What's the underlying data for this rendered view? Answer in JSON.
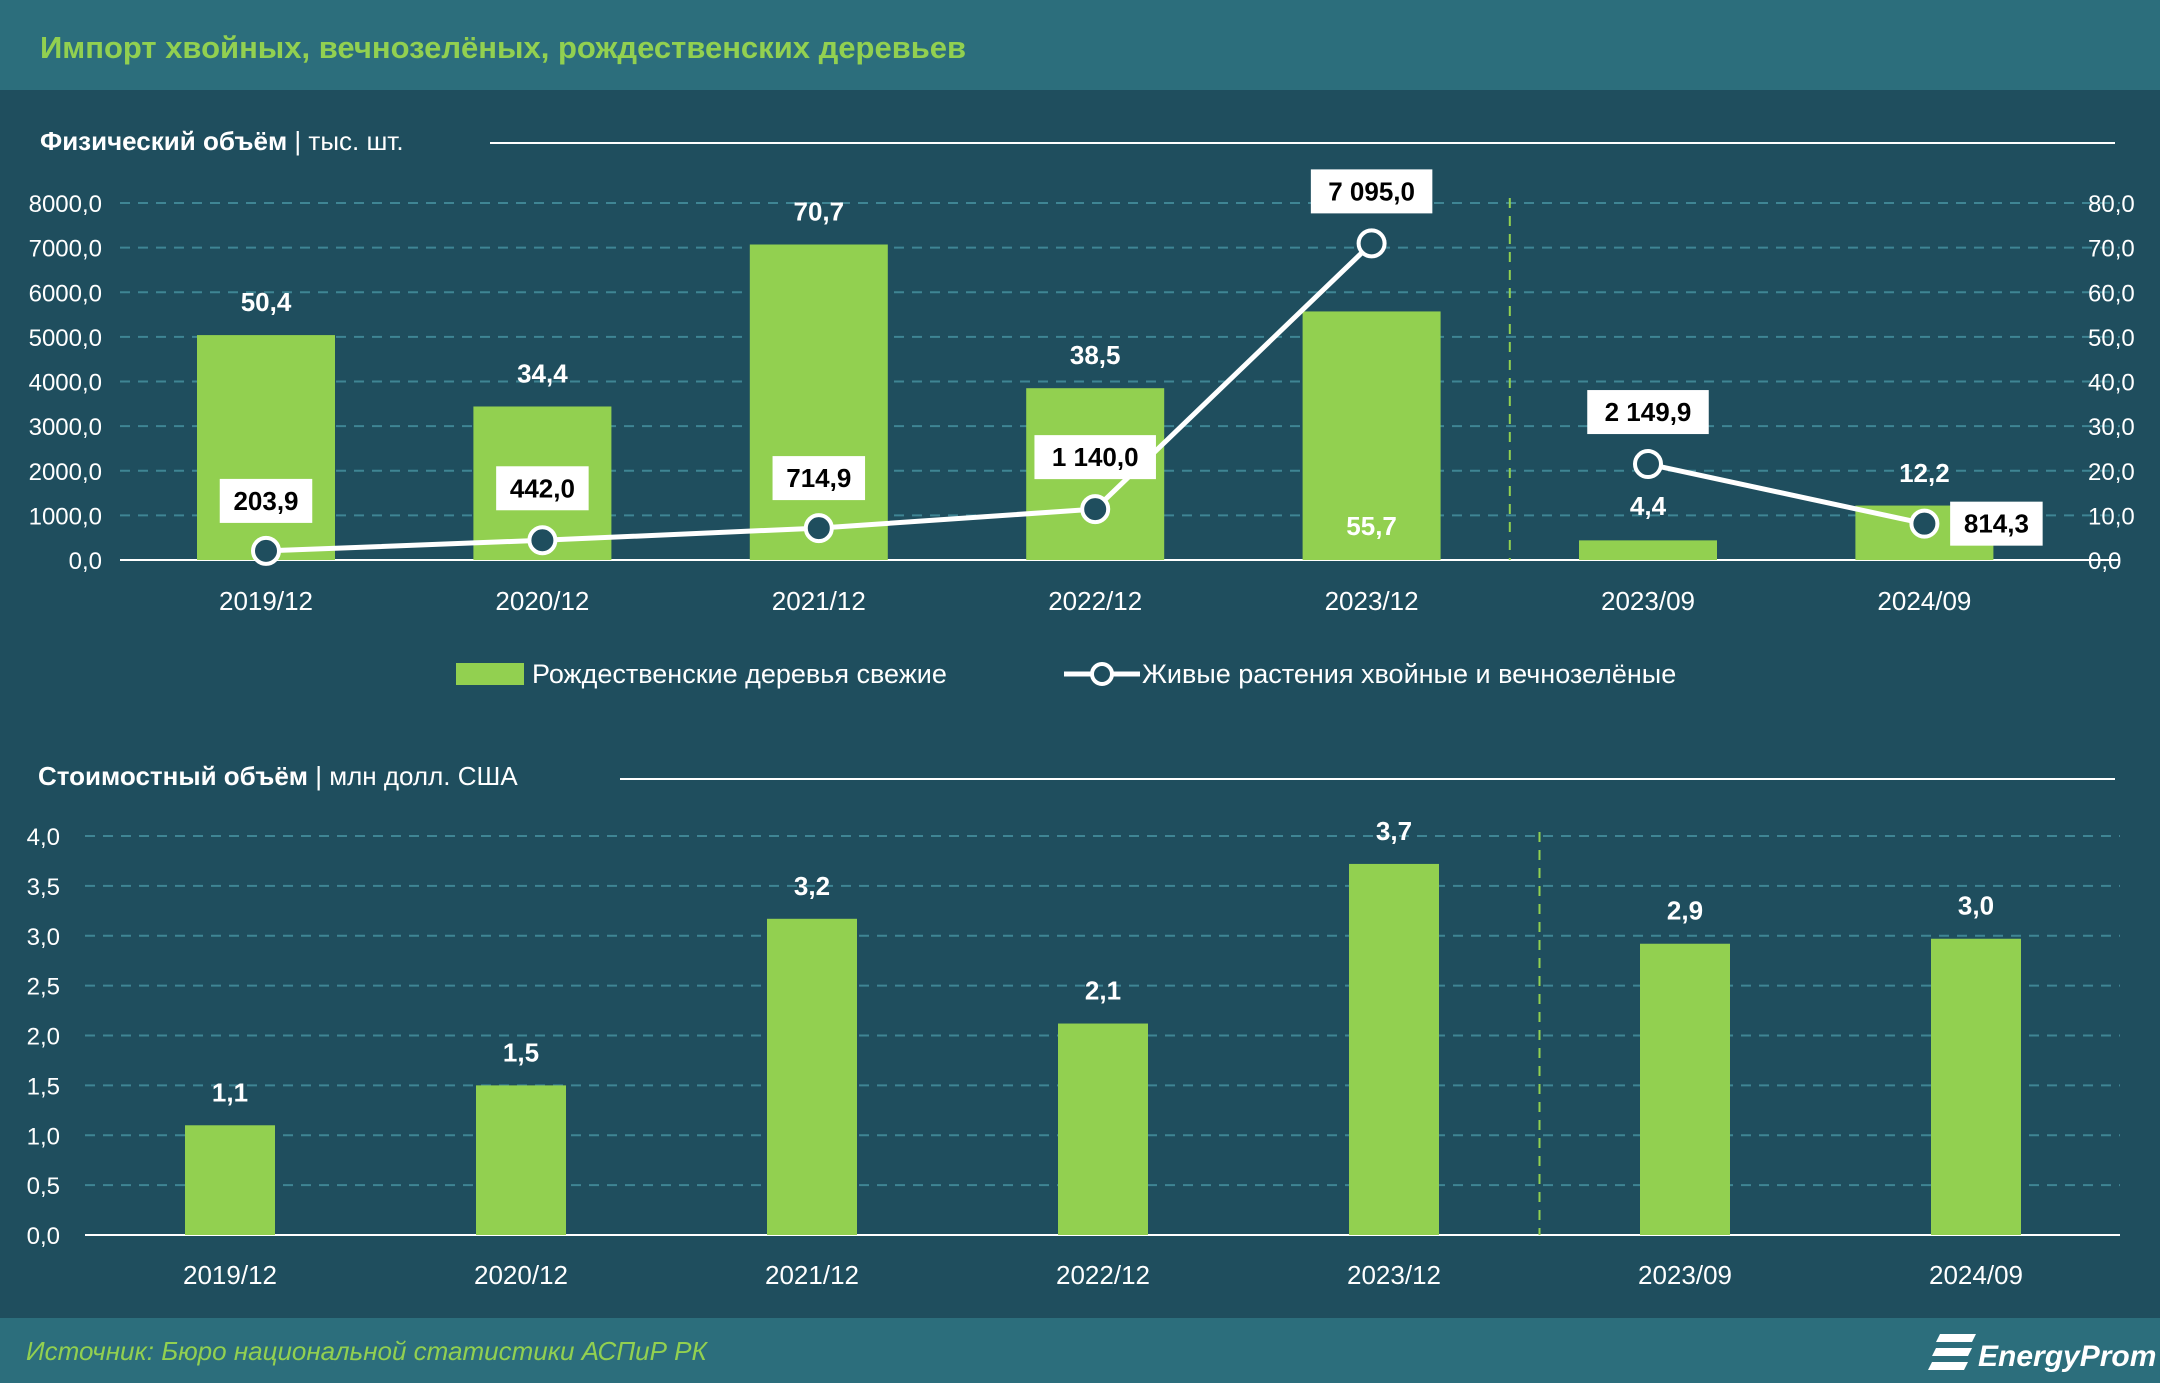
{
  "header": {
    "title": "Импорт хвойных, вечнозелёных, рождественских деревьев"
  },
  "footer": {
    "source": "Источник: Бюро национальной статистики АСПиР РК",
    "logo": "EnergyProm"
  },
  "colors": {
    "bar": "#92d050",
    "title": "#92d050",
    "background": "#1f4e5e",
    "header_bg": "#2c6e7c",
    "line": "#ffffff",
    "marker_fill": "#1f4e5e"
  },
  "chart_data": [
    {
      "type": "bar+line",
      "title": "Физический объём",
      "unit": "тыс. шт.",
      "categories": [
        "2019/12",
        "2020/12",
        "2021/12",
        "2022/12",
        "2023/12",
        "2023/09",
        "2024/09"
      ],
      "left_axis": {
        "min": 0,
        "max": 8000,
        "step": 1000,
        "tick_labels": [
          "0,0",
          "1000,0",
          "2000,0",
          "3000,0",
          "4000,0",
          "5000,0",
          "6000,0",
          "7000,0",
          "8000,0"
        ]
      },
      "right_axis": {
        "min": 0,
        "max": 80,
        "step": 10,
        "tick_labels": [
          "0,0",
          "10,0",
          "20,0",
          "30,0",
          "40,0",
          "50,0",
          "60,0",
          "70,0",
          "80,0"
        ]
      },
      "separator_after_index": 4,
      "series": [
        {
          "name": "Рождественские деревья свежие",
          "kind": "bar",
          "axis": "right",
          "values": [
            50.4,
            34.4,
            70.7,
            38.5,
            55.7,
            4.4,
            12.2
          ],
          "labels": [
            "50,4",
            "34,4",
            "70,7",
            "38,5",
            "55,7",
            "4,4",
            "12,2"
          ]
        },
        {
          "name": "Живые растения хвойные и вечнозелёные",
          "kind": "line",
          "axis": "left",
          "values": [
            203.9,
            442.0,
            714.9,
            1140.0,
            7095.0,
            2149.9,
            814.3
          ],
          "labels": [
            "203,9",
            "442,0",
            "714,9",
            "1 140,0",
            "7 095,0",
            "2 149,9",
            "814,3"
          ]
        }
      ]
    },
    {
      "type": "bar",
      "title": "Стоимостный объём",
      "unit": "млн долл. США",
      "categories": [
        "2019/12",
        "2020/12",
        "2021/12",
        "2022/12",
        "2023/12",
        "2023/09",
        "2024/09"
      ],
      "axis": {
        "min": 0,
        "max": 4,
        "step": 0.5,
        "tick_labels": [
          "0,0",
          "0,5",
          "1,0",
          "1,5",
          "2,0",
          "2,5",
          "3,0",
          "3,5",
          "4,0"
        ]
      },
      "separator_after_index": 4,
      "values": [
        1.1,
        1.5,
        3.17,
        2.12,
        3.72,
        2.92,
        2.97
      ],
      "labels": [
        "1,1",
        "1,5",
        "3,2",
        "2,1",
        "3,7",
        "2,9",
        "3,0"
      ]
    }
  ]
}
